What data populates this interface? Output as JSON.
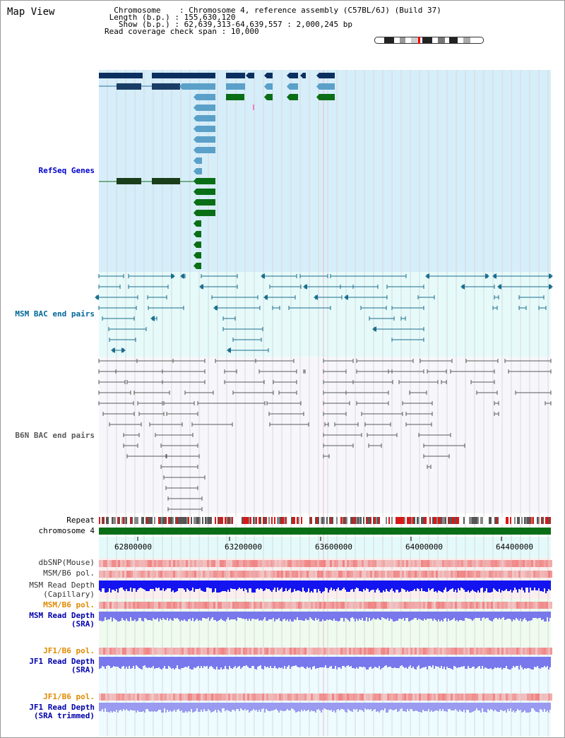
{
  "page": {
    "title": "Map View",
    "info": {
      "chromosome_label": "Chromosome",
      "chromosome_value": "Chromosome 4, reference assembly (C57BL/6J) (Build 37)",
      "length_label": "Length (b.p.)",
      "length_value": "155,630,120",
      "show_label": "Show (b.p.)",
      "show_value": "62,639,313-64,639,557 : 2,000,245 bp",
      "coverage_label": "Read coverage check span",
      "coverage_value": "10,000"
    }
  },
  "tracks": {
    "refseq": "RefSeq Genes",
    "msm_bac": "MSM BAC end pairs",
    "b6n_bac": "B6N BAC end pairs",
    "repeat": "Repeat",
    "chromosome": "chromosome 4",
    "dbsnp": "dbSNP(Mouse)",
    "msm_b6_pol_1": "MSM/B6 pol.",
    "msm_depth_cap_1": "MSM Read Depth",
    "msm_depth_cap_2": "(Capillary)",
    "msm_b6_pol_2": "MSM/B6 pol.",
    "msm_depth_sra_1": "MSM Read Depth",
    "msm_depth_sra_2": "(SRA)",
    "jf1_b6_pol_1": "JF1/B6 pol.",
    "jf1_depth_sra_1": "JF1 Read Depth",
    "jf1_depth_sra_2": "(SRA)",
    "jf1_b6_pol_2": "JF1/B6 pol.",
    "jf1_depth_trim_1": "JF1 Read Depth",
    "jf1_depth_trim_2": "(SRA trimmed)"
  },
  "axis": {
    "ticks": [
      "62800000",
      "63200000",
      "63600000",
      "64000000",
      "64400000"
    ]
  },
  "colors": {
    "refseq_bg": "#d6eefa",
    "msm_bg": "#e6fafa",
    "b6n_bg": "#f7f7fb",
    "gene_dark": "#0b2f5e",
    "gene_light": "#5aa0c8",
    "gene_green": "#0a6e16",
    "msm_line": "#1a6c8c",
    "b6n_line": "#5a5a5a",
    "chromosome": "#0a6e16",
    "snp_red": "#e83030",
    "depth_blue": "#1414f0",
    "depth_light": "#7878ec"
  }
}
